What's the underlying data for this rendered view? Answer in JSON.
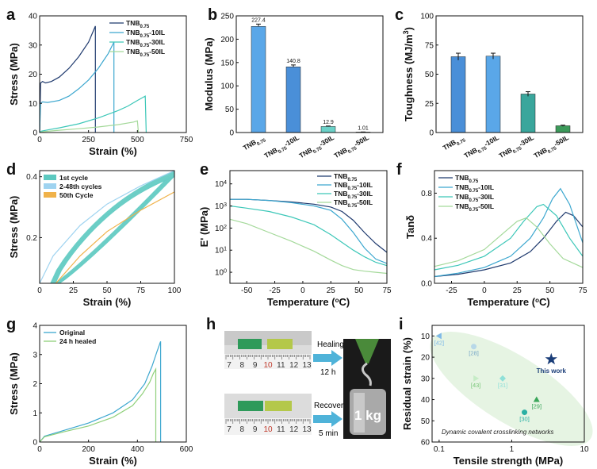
{
  "colors": {
    "c1": "#1f3a6e",
    "c2": "#3ca7cf",
    "c3": "#3cc7b8",
    "c4": "#a4d99a",
    "teal": "#5cc9c0",
    "orange": "#f0b24a",
    "lightblue": "#9fd3f0",
    "green": "#4caf50",
    "navy": "#1a3d78"
  },
  "panels": {
    "a": "a",
    "b": "b",
    "c": "c",
    "d": "d",
    "e": "e",
    "f": "f",
    "g": "g",
    "h": "h",
    "i": "i"
  },
  "chart_data": [
    {
      "id": "a",
      "type": "line",
      "xlabel": "Strain (%)",
      "ylabel": "Stress (MPa)",
      "xlim": [
        0,
        750
      ],
      "ylim": [
        0,
        40
      ],
      "xticks": [
        "0",
        "250",
        "500",
        "750"
      ],
      "yticks": [
        "0",
        "10",
        "20",
        "30",
        "40"
      ],
      "legend": [
        [
          "TNB",
          "0.75",
          ""
        ],
        [
          "TNB",
          "0.75",
          "-10IL"
        ],
        [
          "TNB",
          "0.75",
          "-30IL"
        ],
        [
          "TNB",
          "0.75",
          "-50IL"
        ]
      ],
      "series": [
        {
          "name": "TNB0.75",
          "x": [
            0,
            5,
            15,
            30,
            60,
            100,
            150,
            200,
            250,
            285,
            285
          ],
          "y": [
            0,
            17,
            17.5,
            17,
            17.5,
            19,
            22,
            26,
            31,
            36.5,
            0
          ]
        },
        {
          "name": "TNB0.75-10IL",
          "x": [
            0,
            5,
            15,
            40,
            100,
            150,
            200,
            250,
            300,
            350,
            380,
            380
          ],
          "y": [
            0,
            10,
            10.5,
            10.3,
            11,
            12.5,
            15,
            18,
            22,
            27,
            31,
            0
          ]
        },
        {
          "name": "TNB0.75-30IL",
          "x": [
            0,
            10,
            50,
            100,
            200,
            300,
            400,
            450,
            500,
            540,
            545
          ],
          "y": [
            0,
            0.5,
            1,
            1.6,
            3,
            5,
            7.5,
            9,
            11,
            12.5,
            0
          ]
        },
        {
          "name": "TNB0.75-50IL",
          "x": [
            0,
            20,
            100,
            200,
            300,
            400,
            480,
            500,
            505
          ],
          "y": [
            0,
            0.3,
            0.8,
            1.3,
            1.9,
            2.7,
            3.6,
            4,
            0
          ]
        }
      ]
    },
    {
      "id": "b",
      "type": "bar",
      "ylabel": "Modulus (MPa)",
      "ylim": [
        0,
        250
      ],
      "yticks": [
        "0",
        "50",
        "100",
        "150",
        "200",
        "250"
      ],
      "categories": [
        [
          "TNB",
          "0.75",
          ""
        ],
        [
          "TNB",
          "0.75",
          "-10IL"
        ],
        [
          "TNB",
          "0.75",
          "-30IL"
        ],
        [
          "TNB",
          "0.75",
          "-50IL"
        ]
      ],
      "values": [
        227.4,
        140.8,
        12.9,
        1.01
      ],
      "labels": [
        "227.4",
        "140.8",
        "12.9",
        "1.01"
      ],
      "errors": [
        5,
        4,
        1,
        0.2
      ]
    },
    {
      "id": "c",
      "type": "bar",
      "ylabel": "Toughness (MJ/m",
      "ylabel_sup": "3",
      "ylabel_end": ")",
      "ylim": [
        0,
        100
      ],
      "yticks": [
        "0",
        "25",
        "50",
        "75",
        "100"
      ],
      "categories": [
        [
          "TNB",
          "0.75",
          ""
        ],
        [
          "TNB",
          "0.75",
          "-10IL"
        ],
        [
          "TNB",
          "0.75",
          "-30IL"
        ],
        [
          "TNB",
          "0.75",
          "-50IL"
        ]
      ],
      "values": [
        65,
        65.5,
        33,
        5.8
      ],
      "errors": [
        3,
        2.5,
        2,
        0.5
      ]
    },
    {
      "id": "d",
      "type": "line",
      "xlabel": "Strain (%)",
      "ylabel": "Stress (MPa)",
      "xlim": [
        0,
        100
      ],
      "ylim": [
        0.05,
        0.42
      ],
      "xticks": [
        "0",
        "25",
        "50",
        "75",
        "100"
      ],
      "yticks": [
        "0.2",
        "0.4"
      ],
      "legend": [
        "1st cycle",
        "2-48th cycles",
        "50th Cycle"
      ]
    },
    {
      "id": "e",
      "type": "line",
      "xlabel": "Temperature (",
      "xlabel_deg": "o",
      "xlabel_end": "C)",
      "ylabel": "E' (MPa)",
      "xlim": [
        -65,
        75
      ],
      "ylim_log": [
        -0.5,
        4.6
      ],
      "xticks": [
        "-50",
        "-25",
        "0",
        "25",
        "50",
        "75"
      ],
      "legend": [
        [
          "TNB",
          "0.75",
          ""
        ],
        [
          "TNB",
          "0.75",
          "-10IL"
        ],
        [
          "TNB",
          "0.75",
          "-30IL"
        ],
        [
          "TNB",
          "0.75",
          "-50IL"
        ]
      ],
      "series": [
        {
          "name": "TNB0.75",
          "x": [
            -65,
            -50,
            -30,
            -10,
            10,
            25,
            35,
            45,
            55,
            65,
            75
          ],
          "y": [
            3.3,
            3.3,
            3.25,
            3.18,
            3.08,
            2.95,
            2.75,
            2.35,
            1.8,
            1.3,
            0.9
          ]
        },
        {
          "name": "TNB0.75-10IL",
          "x": [
            -65,
            -50,
            -30,
            -10,
            10,
            25,
            35,
            45,
            55,
            65,
            75
          ],
          "y": [
            3.3,
            3.3,
            3.25,
            3.15,
            3.0,
            2.8,
            2.4,
            1.8,
            1.1,
            0.6,
            0.4
          ]
        },
        {
          "name": "TNB0.75-30IL",
          "x": [
            -65,
            -50,
            -30,
            -10,
            10,
            25,
            35,
            45,
            55,
            65,
            75
          ],
          "y": [
            3.0,
            2.9,
            2.75,
            2.5,
            2.15,
            1.7,
            1.35,
            1.0,
            0.7,
            0.45,
            0.3
          ]
        },
        {
          "name": "TNB0.75-50IL",
          "x": [
            -65,
            -50,
            -30,
            -10,
            10,
            25,
            35,
            45,
            55,
            65,
            75
          ],
          "y": [
            2.4,
            2.2,
            1.8,
            1.4,
            0.95,
            0.55,
            0.3,
            0.12,
            0.05,
            0.0,
            -0.05
          ]
        }
      ]
    },
    {
      "id": "f",
      "type": "line",
      "xlabel": "Temperature (",
      "xlabel_deg": "o",
      "xlabel_end": "C)",
      "ylabel": "Tanδ",
      "xlim": [
        -38,
        75
      ],
      "ylim": [
        0,
        1.0
      ],
      "xticks": [
        "-25",
        "0",
        "25",
        "50",
        "75"
      ],
      "yticks": [
        "0.0",
        "0.4",
        "0.8"
      ],
      "legend": [
        [
          "TNB",
          "0.75",
          ""
        ],
        [
          "TNB",
          "0.75",
          "-10IL"
        ],
        [
          "TNB",
          "0.75",
          "-30IL"
        ],
        [
          "TNB",
          "0.75",
          "-50IL"
        ]
      ],
      "series": [
        {
          "name": "TNB0.75",
          "x": [
            -38,
            -20,
            0,
            20,
            35,
            45,
            55,
            62,
            68,
            75
          ],
          "y": [
            0.06,
            0.08,
            0.12,
            0.18,
            0.28,
            0.4,
            0.55,
            0.63,
            0.6,
            0.5
          ]
        },
        {
          "name": "TNB0.75-10IL",
          "x": [
            -38,
            -20,
            0,
            20,
            35,
            45,
            52,
            58,
            65,
            75
          ],
          "y": [
            0.06,
            0.09,
            0.14,
            0.24,
            0.4,
            0.58,
            0.75,
            0.84,
            0.7,
            0.36
          ]
        },
        {
          "name": "TNB0.75-30IL",
          "x": [
            -38,
            -20,
            0,
            20,
            30,
            40,
            45,
            55,
            65,
            75
          ],
          "y": [
            0.12,
            0.16,
            0.24,
            0.4,
            0.55,
            0.68,
            0.7,
            0.6,
            0.4,
            0.24
          ]
        },
        {
          "name": "TNB0.75-50IL",
          "x": [
            -38,
            -20,
            0,
            15,
            25,
            32,
            40,
            50,
            60,
            75
          ],
          "y": [
            0.15,
            0.2,
            0.3,
            0.45,
            0.55,
            0.58,
            0.5,
            0.35,
            0.22,
            0.14
          ]
        }
      ]
    },
    {
      "id": "g",
      "type": "line",
      "xlabel": "Strain (%)",
      "ylabel": "Stress (MPa)",
      "xlim": [
        0,
        600
      ],
      "ylim": [
        0,
        4
      ],
      "xticks": [
        "0",
        "200",
        "400",
        "600"
      ],
      "yticks": [
        "0",
        "1",
        "2",
        "3",
        "4"
      ],
      "legend": [
        "Original",
        "24 h healed"
      ],
      "series": [
        {
          "name": "Original",
          "x": [
            0,
            20,
            100,
            200,
            300,
            380,
            430,
            460,
            480,
            495,
            495
          ],
          "y": [
            0,
            0.2,
            0.4,
            0.65,
            1.0,
            1.45,
            2.0,
            2.6,
            3.1,
            3.45,
            0
          ]
        },
        {
          "name": "24 h healed",
          "x": [
            0,
            20,
            100,
            200,
            300,
            380,
            420,
            450,
            465,
            475,
            475
          ],
          "y": [
            0,
            0.18,
            0.35,
            0.55,
            0.85,
            1.25,
            1.65,
            2.05,
            2.35,
            2.5,
            0
          ]
        }
      ]
    },
    {
      "id": "i",
      "type": "scatter",
      "xlabel": "Tensile strength (MPa)",
      "ylabel": "Residual strain (%)",
      "xscale": "log",
      "xlim": [
        0.08,
        10
      ],
      "ylim": [
        5,
        60
      ],
      "yreversed": true,
      "xticks": [
        "0.1",
        "1",
        "10"
      ],
      "yticks": [
        "10",
        "20",
        "30",
        "40",
        "50",
        "60"
      ],
      "points": [
        {
          "label": "[42]",
          "x": 0.1,
          "y": 10,
          "marker": "triangle-left",
          "color": "#7fb9e8"
        },
        {
          "label": "[28]",
          "x": 0.3,
          "y": 15,
          "marker": "circle",
          "color": "#b8d8e8"
        },
        {
          "label": "[43]",
          "x": 0.32,
          "y": 30,
          "marker": "triangle-right",
          "color": "#c6ecc6"
        },
        {
          "label": "[31]",
          "x": 0.75,
          "y": 30,
          "marker": "diamond",
          "color": "#8fe0d8"
        },
        {
          "label": "[29]",
          "x": 2.2,
          "y": 40,
          "marker": "triangle",
          "color": "#3aa65a"
        },
        {
          "label": "[30]",
          "x": 1.5,
          "y": 46,
          "marker": "circle",
          "color": "#2ab0a4"
        },
        {
          "label": "This work",
          "x": 3.5,
          "y": 21,
          "marker": "star",
          "color": "#1a3d78"
        }
      ],
      "annotation": "Dynamic covalent crosslinking networks"
    }
  ],
  "panel_h": {
    "ruler_ticks": [
      "7",
      "8",
      "9",
      "10",
      "11",
      "12",
      "13"
    ],
    "healing_label": "Healing",
    "healing_time": "12 h",
    "recovery_label": "Recovery",
    "recovery_time": "5 min",
    "weight_label": "1 kg"
  }
}
